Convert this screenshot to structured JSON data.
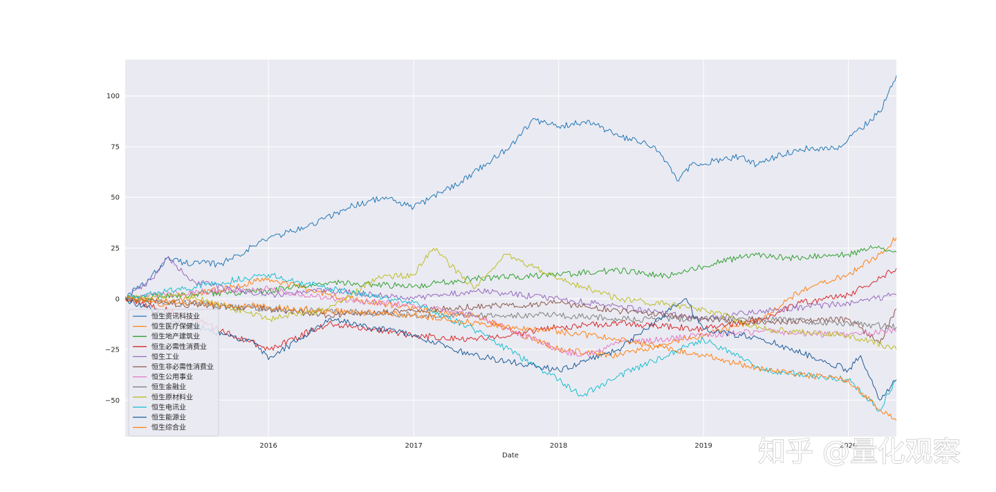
{
  "chart_data": {
    "type": "line",
    "xlabel": "Date",
    "ylabel": "",
    "xlim": [
      "2015-01-05",
      "2020-05-01"
    ],
    "ylim": [
      -68,
      118
    ],
    "x_ticks": [
      "2016",
      "2017",
      "2018",
      "2019",
      "2020"
    ],
    "x_tick_dates": [
      "2016-01-01",
      "2017-01-01",
      "2018-01-01",
      "2019-01-01",
      "2020-01-01"
    ],
    "y_ticks": [
      -50,
      -25,
      0,
      25,
      50,
      75,
      100
    ],
    "grid": true,
    "legend_position": "lower-left",
    "watermark": "知乎 @量化观察",
    "series": [
      {
        "name": "恒生资讯科技业",
        "color": "#1f77b4",
        "x": [
          "2015-01-05",
          "2015-03-01",
          "2015-04-20",
          "2015-06-01",
          "2015-09-01",
          "2016-01-01",
          "2016-04-01",
          "2016-08-01",
          "2016-10-15",
          "2017-01-01",
          "2017-05-01",
          "2017-09-01",
          "2017-10-25",
          "2018-01-01",
          "2018-02-01",
          "2018-03-15",
          "2018-06-01",
          "2018-09-01",
          "2018-10-30",
          "2018-12-01",
          "2019-04-01",
          "2019-05-15",
          "2019-07-01",
          "2019-09-01",
          "2019-12-01",
          "2020-02-01",
          "2020-03-20",
          "2020-05-01"
        ],
        "y": [
          1,
          8,
          20,
          18,
          17,
          30,
          35,
          46,
          50,
          45,
          58,
          75,
          88,
          85,
          86,
          88,
          80,
          75,
          58,
          66,
          70,
          66,
          70,
          74,
          74,
          84,
          92,
          110
        ]
      },
      {
        "name": "恒生医疗保健业",
        "color": "#ff7f0e",
        "x": [
          "2015-01-05",
          "2015-04-20",
          "2015-07-01",
          "2016-01-01",
          "2016-06-01",
          "2017-01-01",
          "2017-06-01",
          "2018-01-01",
          "2018-06-01",
          "2019-01-01",
          "2019-06-01",
          "2019-08-01",
          "2019-10-01",
          "2020-01-01",
          "2020-03-20",
          "2020-05-01"
        ],
        "y": [
          0,
          -3,
          2,
          10,
          2,
          -5,
          -8,
          -25,
          -28,
          -18,
          -10,
          0,
          6,
          12,
          22,
          30
        ]
      },
      {
        "name": "恒生地产建筑业",
        "color": "#2ca02c",
        "x": [
          "2015-01-05",
          "2015-06-01",
          "2016-01-01",
          "2016-06-01",
          "2017-01-01",
          "2017-06-01",
          "2018-01-01",
          "2018-06-01",
          "2018-10-01",
          "2019-01-01",
          "2019-05-01",
          "2019-08-01",
          "2020-01-01",
          "2020-03-01",
          "2020-05-01"
        ],
        "y": [
          0,
          2,
          4,
          8,
          6,
          10,
          12,
          14,
          11,
          16,
          22,
          20,
          22,
          25,
          23
        ]
      },
      {
        "name": "恒生必需性消费业",
        "color": "#d62728",
        "x": [
          "2015-01-05",
          "2015-06-01",
          "2016-01-01",
          "2016-06-01",
          "2017-01-01",
          "2017-06-01",
          "2018-01-01",
          "2018-06-01",
          "2019-01-01",
          "2019-06-01",
          "2019-09-01",
          "2020-01-01",
          "2020-03-01",
          "2020-05-01"
        ],
        "y": [
          0,
          -8,
          -25,
          -12,
          -18,
          -20,
          -14,
          -12,
          -15,
          -10,
          -2,
          2,
          8,
          15
        ]
      },
      {
        "name": "恒生工业",
        "color": "#9467bd",
        "x": [
          "2015-01-05",
          "2015-03-15",
          "2015-04-20",
          "2015-07-01",
          "2016-01-01",
          "2016-06-01",
          "2017-01-01",
          "2017-06-01",
          "2018-01-01",
          "2018-06-01",
          "2019-01-01",
          "2019-06-01",
          "2020-01-01",
          "2020-05-01"
        ],
        "y": [
          0,
          10,
          20,
          8,
          2,
          4,
          0,
          4,
          0,
          -4,
          -10,
          -6,
          -2,
          2
        ]
      },
      {
        "name": "恒生非必需性消费业",
        "color": "#8c564b",
        "x": [
          "2015-01-05",
          "2015-06-01",
          "2016-01-01",
          "2016-06-01",
          "2017-01-01",
          "2017-06-01",
          "2018-01-01",
          "2018-06-01",
          "2019-01-01",
          "2019-06-01",
          "2020-01-01",
          "2020-03-20",
          "2020-05-01"
        ],
        "y": [
          0,
          -3,
          -5,
          -8,
          -6,
          -4,
          -2,
          -6,
          -10,
          -12,
          -10,
          -22,
          -5
        ]
      },
      {
        "name": "恒生公用事业",
        "color": "#e377c2",
        "x": [
          "2015-01-05",
          "2015-06-01",
          "2016-01-01",
          "2016-06-01",
          "2017-01-01",
          "2017-06-01",
          "2018-01-01",
          "2018-03-01",
          "2018-06-01",
          "2019-01-01",
          "2019-06-01",
          "2020-01-01",
          "2020-05-01"
        ],
        "y": [
          0,
          3,
          5,
          0,
          -3,
          -8,
          -25,
          -28,
          -22,
          -18,
          -16,
          -18,
          -16
        ]
      },
      {
        "name": "恒生金融业",
        "color": "#7f7f7f",
        "x": [
          "2015-01-05",
          "2015-06-01",
          "2016-01-01",
          "2016-06-01",
          "2017-01-01",
          "2017-06-01",
          "2018-01-01",
          "2018-06-01",
          "2019-01-01",
          "2019-06-01",
          "2020-01-01",
          "2020-05-01"
        ],
        "y": [
          0,
          -2,
          -5,
          -6,
          -8,
          -8,
          -8,
          -10,
          -10,
          -10,
          -12,
          -14
        ]
      },
      {
        "name": "恒生原材料业",
        "color": "#bcbd22",
        "x": [
          "2015-01-05",
          "2015-06-01",
          "2016-01-01",
          "2016-06-01",
          "2016-10-01",
          "2017-01-01",
          "2017-02-20",
          "2017-06-01",
          "2017-08-20",
          "2018-01-01",
          "2018-06-01",
          "2019-01-01",
          "2019-06-01",
          "2020-01-01",
          "2020-05-01"
        ],
        "y": [
          0,
          2,
          -10,
          -5,
          10,
          12,
          25,
          5,
          22,
          10,
          0,
          -5,
          -15,
          -18,
          -25
        ]
      },
      {
        "name": "恒生电讯业",
        "color": "#17becf",
        "x": [
          "2015-01-05",
          "2015-06-01",
          "2016-01-01",
          "2016-06-01",
          "2017-01-01",
          "2017-06-01",
          "2018-01-01",
          "2018-03-01",
          "2018-06-01",
          "2019-01-01",
          "2019-06-01",
          "2020-01-01",
          "2020-03-20",
          "2020-05-01"
        ],
        "y": [
          0,
          5,
          12,
          5,
          -2,
          -15,
          -40,
          -48,
          -38,
          -20,
          -35,
          -40,
          -55,
          -40
        ]
      },
      {
        "name": "恒生能源业",
        "color": "#1a5a96",
        "x": [
          "2015-01-05",
          "2015-06-01",
          "2015-12-01",
          "2016-01-01",
          "2016-06-01",
          "2017-01-01",
          "2017-06-01",
          "2018-01-01",
          "2018-06-01",
          "2018-11-15",
          "2019-01-01",
          "2019-06-01",
          "2020-01-01",
          "2020-02-01",
          "2020-03-20",
          "2020-05-01"
        ],
        "y": [
          0,
          -12,
          -22,
          -30,
          -10,
          -18,
          -28,
          -35,
          -25,
          0,
          -15,
          -20,
          -35,
          -28,
          -50,
          -40
        ]
      },
      {
        "name": "恒生综合业",
        "color": "#ff7f0e",
        "x": [
          "2015-01-05",
          "2015-06-01",
          "2016-01-01",
          "2016-06-01",
          "2017-01-01",
          "2017-06-01",
          "2018-01-01",
          "2018-06-01",
          "2019-01-01",
          "2019-06-01",
          "2020-01-01",
          "2020-03-20",
          "2020-05-01"
        ],
        "y": [
          0,
          -2,
          -4,
          -6,
          -8,
          -12,
          -16,
          -20,
          -28,
          -35,
          -40,
          -55,
          -60
        ]
      }
    ]
  }
}
